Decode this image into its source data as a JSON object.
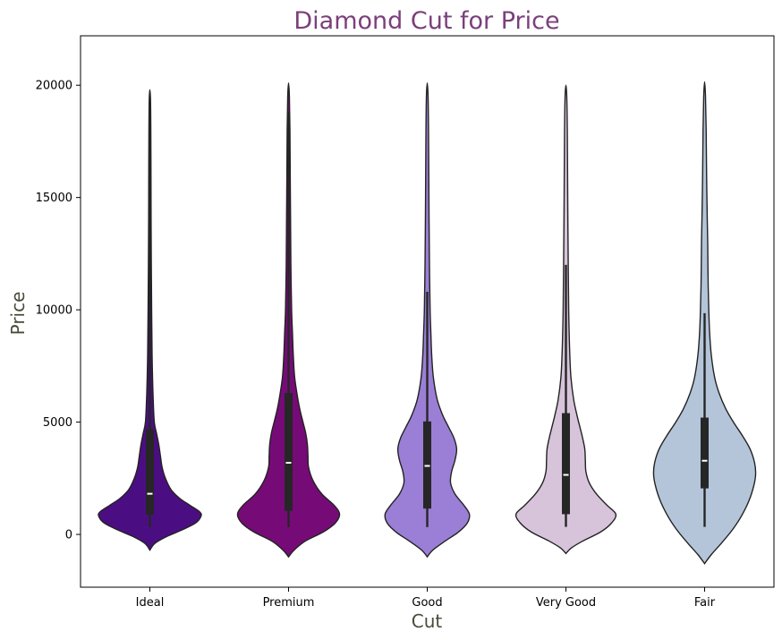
{
  "colors": {
    "title": "#7b3f7b",
    "axis_label": "#4a4a3a",
    "outline": "#222222",
    "box": "#262626",
    "median": "#ffffff"
  },
  "chart_data": {
    "type": "violin",
    "title": "Diamond Cut for Price",
    "xlabel": "Cut",
    "ylabel": "Price",
    "ylim": [
      -2350,
      22200
    ],
    "yticks": [
      0,
      5000,
      10000,
      15000,
      20000
    ],
    "categories": [
      "Ideal",
      "Premium",
      "Good",
      "Very Good",
      "Fair"
    ],
    "series": [
      {
        "category": "Ideal",
        "color": "#4b0e82",
        "min": 326,
        "q1": 880,
        "median": 1810,
        "q3": 4680,
        "whisker_high": 19000,
        "violin_range": [
          -700,
          19800
        ],
        "density": [
          [
            -700,
            0
          ],
          [
            -400,
            0.09
          ],
          [
            -100,
            0.3
          ],
          [
            200,
            0.58
          ],
          [
            500,
            0.82
          ],
          [
            800,
            0.92
          ],
          [
            1000,
            0.9
          ],
          [
            1300,
            0.72
          ],
          [
            1600,
            0.54
          ],
          [
            2000,
            0.38
          ],
          [
            2500,
            0.28
          ],
          [
            3000,
            0.22
          ],
          [
            3500,
            0.19
          ],
          [
            4000,
            0.16
          ],
          [
            4500,
            0.12
          ],
          [
            5000,
            0.08
          ],
          [
            6000,
            0.06
          ],
          [
            7000,
            0.048
          ],
          [
            8000,
            0.04
          ],
          [
            10000,
            0.032
          ],
          [
            12000,
            0.026
          ],
          [
            14000,
            0.022
          ],
          [
            16000,
            0.02
          ],
          [
            18000,
            0.017
          ],
          [
            19300,
            0.012
          ],
          [
            19800,
            0
          ]
        ]
      },
      {
        "category": "Premium",
        "color": "#760b78",
        "min": 326,
        "q1": 1050,
        "median": 3190,
        "q3": 6300,
        "whisker_high": 18800,
        "violin_range": [
          -1000,
          20100
        ],
        "density": [
          [
            -1000,
            0
          ],
          [
            -700,
            0.1
          ],
          [
            -300,
            0.3
          ],
          [
            100,
            0.62
          ],
          [
            500,
            0.84
          ],
          [
            900,
            0.92
          ],
          [
            1300,
            0.82
          ],
          [
            1800,
            0.6
          ],
          [
            2400,
            0.44
          ],
          [
            3000,
            0.36
          ],
          [
            3500,
            0.35
          ],
          [
            4000,
            0.34
          ],
          [
            4500,
            0.31
          ],
          [
            5000,
            0.26
          ],
          [
            5500,
            0.21
          ],
          [
            6000,
            0.17
          ],
          [
            7000,
            0.11
          ],
          [
            8000,
            0.085
          ],
          [
            9000,
            0.07
          ],
          [
            10000,
            0.055
          ],
          [
            12000,
            0.042
          ],
          [
            14000,
            0.036
          ],
          [
            16000,
            0.03
          ],
          [
            18000,
            0.025
          ],
          [
            19500,
            0.015
          ],
          [
            20100,
            0
          ]
        ]
      },
      {
        "category": "Good",
        "color": "#9b7fd6",
        "min": 327,
        "q1": 1150,
        "median": 3050,
        "q3": 5030,
        "whisker_high": 10800,
        "violin_range": [
          -1000,
          20100
        ],
        "density": [
          [
            -1000,
            0
          ],
          [
            -700,
            0.1
          ],
          [
            -300,
            0.32
          ],
          [
            100,
            0.56
          ],
          [
            500,
            0.72
          ],
          [
            900,
            0.76
          ],
          [
            1300,
            0.66
          ],
          [
            1800,
            0.5
          ],
          [
            2300,
            0.42
          ],
          [
            2800,
            0.44
          ],
          [
            3300,
            0.5
          ],
          [
            3800,
            0.53
          ],
          [
            4300,
            0.48
          ],
          [
            4800,
            0.38
          ],
          [
            5300,
            0.28
          ],
          [
            6000,
            0.18
          ],
          [
            7000,
            0.11
          ],
          [
            8000,
            0.08
          ],
          [
            9000,
            0.065
          ],
          [
            10000,
            0.052
          ],
          [
            12000,
            0.04
          ],
          [
            14000,
            0.033
          ],
          [
            16000,
            0.028
          ],
          [
            18000,
            0.023
          ],
          [
            19500,
            0.015
          ],
          [
            20100,
            0
          ]
        ]
      },
      {
        "category": "Very Good",
        "color": "#d7c4db",
        "min": 336,
        "q1": 900,
        "median": 2650,
        "q3": 5400,
        "whisker_high": 12000,
        "violin_range": [
          -850,
          20000
        ],
        "density": [
          [
            -850,
            0
          ],
          [
            -600,
            0.1
          ],
          [
            -300,
            0.3
          ],
          [
            100,
            0.62
          ],
          [
            500,
            0.82
          ],
          [
            900,
            0.9
          ],
          [
            1300,
            0.74
          ],
          [
            1800,
            0.55
          ],
          [
            2300,
            0.42
          ],
          [
            2800,
            0.36
          ],
          [
            3300,
            0.35
          ],
          [
            3800,
            0.34
          ],
          [
            4300,
            0.3
          ],
          [
            4800,
            0.25
          ],
          [
            5300,
            0.2
          ],
          [
            6000,
            0.14
          ],
          [
            7000,
            0.09
          ],
          [
            8000,
            0.07
          ],
          [
            9000,
            0.058
          ],
          [
            10000,
            0.05
          ],
          [
            12000,
            0.042
          ],
          [
            14000,
            0.035
          ],
          [
            16000,
            0.03
          ],
          [
            18000,
            0.025
          ],
          [
            19500,
            0.015
          ],
          [
            20000,
            0
          ]
        ]
      },
      {
        "category": "Fair",
        "color": "#b4c5da",
        "min": 337,
        "q1": 2050,
        "median": 3280,
        "q3": 5200,
        "whisker_high": 9850,
        "violin_range": [
          -1300,
          20150
        ],
        "density": [
          [
            -1300,
            0
          ],
          [
            -900,
            0.12
          ],
          [
            -400,
            0.3
          ],
          [
            200,
            0.5
          ],
          [
            800,
            0.66
          ],
          [
            1500,
            0.8
          ],
          [
            2200,
            0.89
          ],
          [
            2700,
            0.92
          ],
          [
            3200,
            0.9
          ],
          [
            3800,
            0.82
          ],
          [
            4400,
            0.68
          ],
          [
            5000,
            0.52
          ],
          [
            5600,
            0.38
          ],
          [
            6300,
            0.26
          ],
          [
            7000,
            0.18
          ],
          [
            8000,
            0.12
          ],
          [
            9000,
            0.09
          ],
          [
            10000,
            0.075
          ],
          [
            11000,
            0.065
          ],
          [
            12000,
            0.06
          ],
          [
            13000,
            0.056
          ],
          [
            14000,
            0.048
          ],
          [
            16000,
            0.036
          ],
          [
            18000,
            0.028
          ],
          [
            19500,
            0.016
          ],
          [
            20150,
            0
          ]
        ]
      }
    ]
  }
}
